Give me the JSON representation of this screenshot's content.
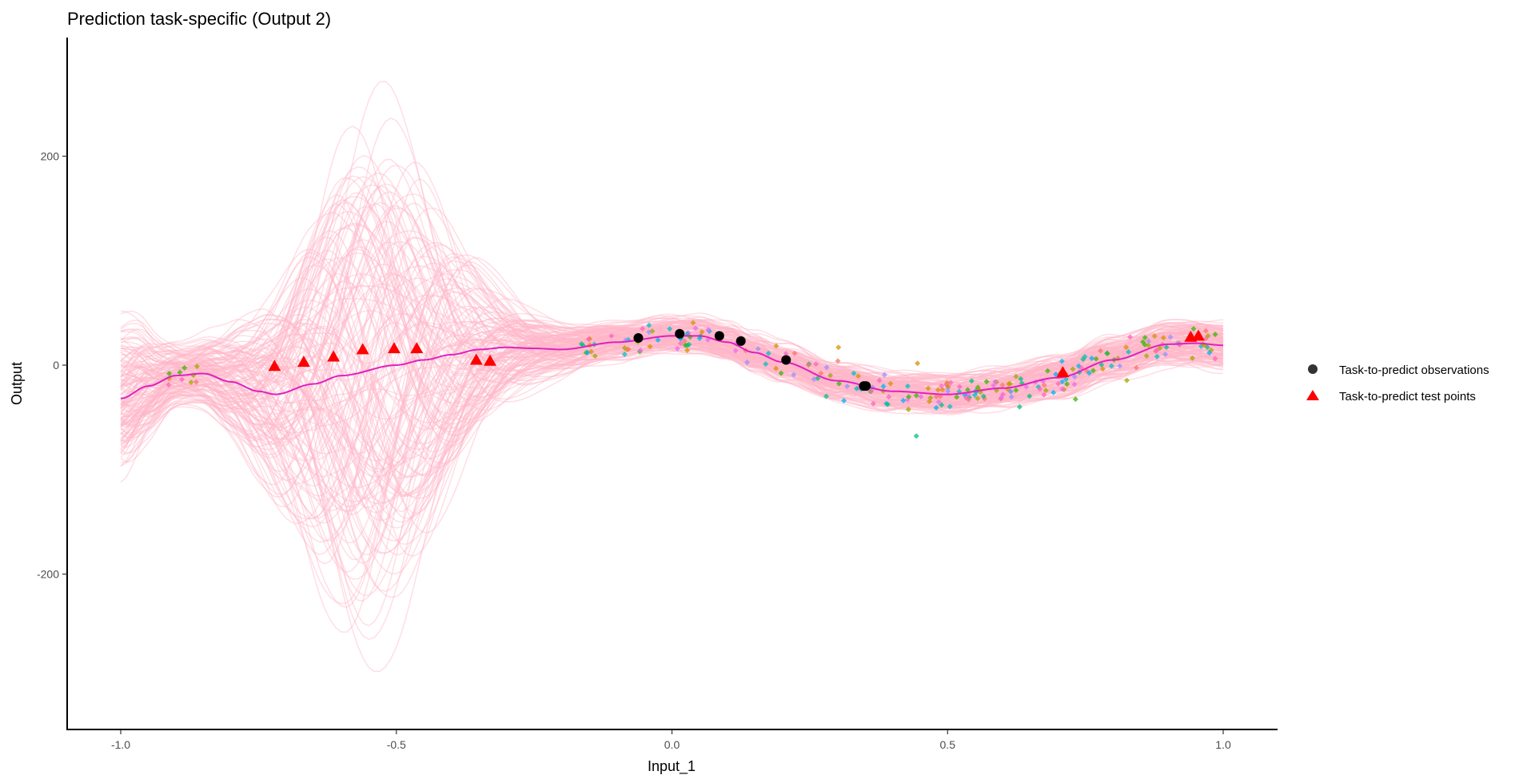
{
  "chart_data": {
    "type": "line",
    "title": "Prediction task-specific (Output 2)",
    "xlabel": "Input_1",
    "ylabel": "Output",
    "xlim": [
      -1.1,
      1.1
    ],
    "ylim": [
      -350,
      290
    ],
    "x_ticks": [
      -1.0,
      -0.5,
      0.0,
      0.5,
      1.0
    ],
    "x_tick_labels": [
      "-1.0",
      "-0.5",
      "0.0",
      "0.5",
      "1.0"
    ],
    "y_ticks": [
      200,
      0,
      -200
    ],
    "y_tick_labels": [
      "200",
      "0",
      "-200"
    ],
    "grid": false,
    "legend_position": "right",
    "legend": [
      {
        "label": "Task-to-predict observations",
        "shape": "circle",
        "color": "#333333"
      },
      {
        "label": "Task-to-predict test points",
        "shape": "triangle",
        "color": "#FF0000"
      }
    ],
    "mean_curve": {
      "color": "#E020C0",
      "x": [
        -1.0,
        -0.95,
        -0.9,
        -0.85,
        -0.8,
        -0.75,
        -0.72,
        -0.65,
        -0.6,
        -0.5,
        -0.45,
        -0.4,
        -0.35,
        -0.3,
        -0.25,
        -0.2,
        -0.1,
        0.0,
        0.05,
        0.1,
        0.15,
        0.2,
        0.3,
        0.4,
        0.5,
        0.6,
        0.7,
        0.8,
        0.9,
        0.95,
        1.0
      ],
      "y": [
        -32,
        -20,
        -10,
        -8,
        -16,
        -25,
        -28,
        -18,
        -10,
        0,
        5,
        10,
        15,
        17,
        16,
        15,
        22,
        28,
        28,
        22,
        12,
        3,
        -15,
        -25,
        -28,
        -22,
        -12,
        5,
        20,
        21,
        19
      ]
    },
    "sample_curves": {
      "count": 150,
      "color": "#FFB6C8"
    },
    "observations": {
      "x": [
        -0.061,
        0.014,
        0.086,
        0.125,
        0.207,
        0.348,
        0.352
      ],
      "y": [
        26,
        30,
        28,
        23,
        5,
        -20,
        -20
      ]
    },
    "test_points": {
      "x": [
        -0.721,
        -0.668,
        -0.614,
        -0.561,
        -0.504,
        -0.463,
        -0.355,
        -0.33,
        0.709,
        0.941,
        0.955
      ],
      "y": [
        -1,
        3,
        8,
        15,
        16,
        16,
        5,
        4,
        -7,
        27,
        28
      ]
    },
    "other_tasks_palette": [
      "#F8766D",
      "#D89000",
      "#A3A500",
      "#39B600",
      "#00BF7D",
      "#00BFC4",
      "#00B0F6",
      "#9590FF",
      "#E76BF3",
      "#FF62BC"
    ]
  }
}
